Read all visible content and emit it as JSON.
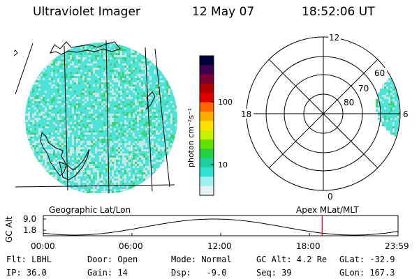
{
  "header": {
    "instrument": "Ultraviolet Imager",
    "date": "12 May 07",
    "time": "18:52:06 UT"
  },
  "geo_panel": {
    "caption": "Geographic Lat/Lon"
  },
  "colorbar": {
    "unit_label": "photon cm⁻²s⁻¹",
    "tick_labels": [
      "100",
      "10"
    ],
    "colors": [
      "#000040",
      "#400050",
      "#7a0030",
      "#b00000",
      "#e00000",
      "#ff6600",
      "#ffaa00",
      "#ffe000",
      "#c8f000",
      "#60e000",
      "#20d040",
      "#20d0a0",
      "#30e0d0",
      "#a0f0f0",
      "#e6f2f2"
    ]
  },
  "polar_panel": {
    "caption": "Apex  MLat/MLT",
    "mlt_labels": {
      "top": "12",
      "left": "18",
      "right": "6",
      "bottom": "0"
    },
    "lat_labels": [
      "80",
      "70",
      "60"
    ]
  },
  "altitude_plot": {
    "y_label": "GC Alt",
    "y_ticks": [
      "9.0",
      "1.8"
    ],
    "x_ticks": [
      "00:00",
      "06:00",
      "12:00",
      "18:00",
      "23:59"
    ],
    "marker_time": "18:52",
    "marker_color": "#d00000"
  },
  "info": {
    "row1": {
      "filter": "Flt: LBHL",
      "door": "Door: Open",
      "mode": "Mode: Normal",
      "gc_alt": "GC Alt: 4.2 Re",
      "glat": "GLat: -32.9"
    },
    "row2": {
      "ip": "IP: 36.0",
      "gain": "Gain: 14",
      "dsp": "Dsp:   -9.0",
      "seq": "Seq: 39",
      "glon": "GLon: 167.3"
    }
  },
  "colors": {
    "disk_base": "#4fe2d8",
    "disk_light": "#bfe9e6",
    "disk_green": "#3fd07a",
    "disk_grey": "#d8e2e2"
  }
}
